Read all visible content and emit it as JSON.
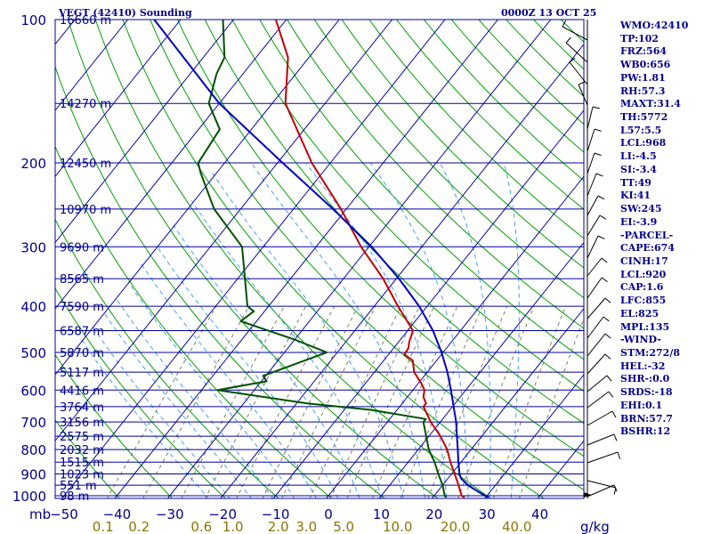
{
  "header": {
    "station": "VEGT (42410) Sounding",
    "time": "0000Z 13 OCT 25"
  },
  "indices": [
    "WMO:42410",
    "TP:102",
    "FRZ:564",
    "WB0:656",
    "PW:1.81",
    "RH:57.3",
    "MAXT:31.4",
    "TH:5772",
    "L57:5.5",
    "LCL:968",
    "LI:-4.5",
    "SI:-3.4",
    "TT:49",
    "KI:41",
    "SW:245",
    "EI:-3.9",
    "-PARCEL-",
    "CAPE:674",
    "CINH:17",
    "LCL:920",
    "CAP:1.6",
    "LFC:855",
    "EL:825",
    "MPL:135",
    "-WIND-",
    "STM:272/8",
    "HEL:-32",
    "SHR-:0.0",
    "SRDS:-18",
    "EHI:0.1",
    "BRN:57.7",
    "BSHR:12"
  ],
  "colors": {
    "isobar": "#0000a0",
    "isotherm": "#0000a0",
    "dry_adiabat": "#00a000",
    "moist_adiabat": "#40a0ff",
    "mixing_ratio": "#808060",
    "temperature": "#c00000",
    "dewpoint": "#005000",
    "parcel": "#0000c0",
    "label": "#00008b",
    "mixing_label": "#8b7500"
  },
  "chart_data": {
    "type": "skew-t",
    "title": "VEGT (42410) Sounding",
    "xlabel": "",
    "ylabel": "mb",
    "xlim": [
      -50,
      50
    ],
    "ylim": [
      1050,
      100
    ],
    "y_scale": "log",
    "pressure_ticks": [
      100,
      200,
      300,
      400,
      500,
      600,
      700,
      800,
      900,
      1000
    ],
    "temperature_ticks": [
      -50,
      -40,
      -30,
      -20,
      -10,
      0,
      10,
      20,
      30,
      40
    ],
    "height_levels": [
      {
        "p": 100,
        "label": "16660 m"
      },
      {
        "p": 150,
        "label": "14270 m"
      },
      {
        "p": 200,
        "label": "12450 m"
      },
      {
        "p": 250,
        "label": "10970 m"
      },
      {
        "p": 300,
        "label": "9690 m"
      },
      {
        "p": 350,
        "label": "8565 m"
      },
      {
        "p": 400,
        "label": "7590 m"
      },
      {
        "p": 450,
        "label": "6587 m"
      },
      {
        "p": 500,
        "label": "5870 m"
      },
      {
        "p": 550,
        "label": "5117 m"
      },
      {
        "p": 600,
        "label": "4416 m"
      },
      {
        "p": 650,
        "label": "3764 m"
      },
      {
        "p": 700,
        "label": "3156 m"
      },
      {
        "p": 750,
        "label": "2575 m"
      },
      {
        "p": 800,
        "label": "2032 m"
      },
      {
        "p": 850,
        "label": "1515 m"
      },
      {
        "p": 900,
        "label": "1023 m"
      },
      {
        "p": 950,
        "label": "551 m"
      },
      {
        "p": 1000,
        "label": "98 m"
      }
    ],
    "mixing_ratio_labels": [
      {
        "x": 0.1,
        "label": "0.1"
      },
      {
        "x": 0.2,
        "label": "0.2"
      },
      {
        "x": 0.6,
        "label": "0.6"
      },
      {
        "x": 1.0,
        "label": "1.0"
      },
      {
        "x": 2.0,
        "label": "2.0"
      },
      {
        "x": 3.0,
        "label": "3.0"
      },
      {
        "x": 5.0,
        "label": "5.0"
      },
      {
        "x": 10.0,
        "label": "10.0"
      },
      {
        "x": 20.0,
        "label": "20.0"
      },
      {
        "x": 40.0,
        "label": "40.0"
      }
    ],
    "mixing_ratio_unit": "g/kg",
    "mixing_ratio_lines": [
      0.1,
      0.2,
      0.4,
      0.6,
      1,
      1.5,
      2,
      3,
      4,
      5,
      7,
      10,
      14,
      20,
      30,
      40
    ],
    "series": [
      {
        "key": "temperature",
        "p": [
          1008,
          1000,
          950,
          900,
          850,
          800,
          750,
          700,
          650,
          640,
          620,
          600,
          580,
          550,
          520,
          505,
          490,
          475,
          450,
          400,
          350,
          300,
          250,
          200,
          150,
          120,
          100
        ],
        "t": [
          26.0,
          25.2,
          23.0,
          20.6,
          18.0,
          15.5,
          12.2,
          8.2,
          4.5,
          4.5,
          3.0,
          2.2,
          0.5,
          -2.5,
          -4.5,
          -7.0,
          -7.2,
          -8.0,
          -9.0,
          -15.5,
          -22.5,
          -31.5,
          -41.0,
          -53.5,
          -67.5,
          -74.0,
          -82.0
        ]
      },
      {
        "key": "dewpoint",
        "p": [
          1008,
          1000,
          950,
          900,
          850,
          800,
          750,
          700,
          690,
          660,
          640,
          600,
          575,
          560,
          500,
          470,
          430,
          410,
          400,
          300,
          250,
          210,
          200,
          170,
          150,
          130,
          120,
          100
        ],
        "t": [
          22.5,
          22.0,
          20.0,
          17.5,
          15.0,
          12.0,
          9.5,
          6.8,
          6.8,
          -5.0,
          -18.0,
          -37.0,
          -29.0,
          -30.5,
          -22.0,
          -30.0,
          -43.0,
          -42.0,
          -44.0,
          -54.0,
          -65.0,
          -73.0,
          -75.0,
          -76.0,
          -82.0,
          -85.0,
          -86.0,
          -92.0
        ]
      },
      {
        "key": "parcel",
        "p": [
          1008,
          1000,
          968,
          950,
          920,
          900,
          850,
          800,
          750,
          700,
          650,
          600,
          550,
          500,
          450,
          400,
          350,
          300,
          250,
          200,
          150,
          100
        ],
        "t": [
          30.5,
          29.6,
          26.5,
          24.8,
          22.5,
          21.5,
          19.5,
          17.5,
          15.3,
          13.0,
          10.2,
          7.2,
          3.8,
          -0.3,
          -5.2,
          -11.5,
          -19.5,
          -29.5,
          -42.5,
          -59.0,
          -80.0,
          -105.0
        ]
      }
    ]
  }
}
